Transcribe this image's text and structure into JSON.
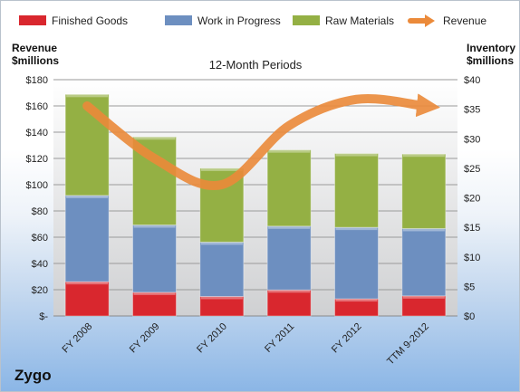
{
  "company": "Zygo",
  "chart_data": {
    "type": "bar",
    "subtype": "stacked bar with line overlay (secondary axis)",
    "title": "12-Month Periods",
    "left_axis_label": [
      "Revenue",
      "$millions"
    ],
    "right_axis_label": [
      "Inventory",
      "$millions"
    ],
    "categories": [
      "FY 2008",
      "FY 2009",
      "FY 2010",
      "FY 2011",
      "FY 2012",
      "TTM 9-2012"
    ],
    "left_ticks": [
      "$-",
      "$20",
      "$40",
      "$60",
      "$80",
      "$100",
      "$120",
      "$140",
      "$160",
      "$180"
    ],
    "right_ticks": [
      "$0",
      "$5",
      "$10",
      "$15",
      "$20",
      "$25",
      "$30",
      "$35",
      "$40"
    ],
    "ylim_left": [
      0,
      180
    ],
    "ylim_right": [
      0,
      40
    ],
    "legend_position": "top",
    "grid": true,
    "series": [
      {
        "name": "Finished Goods",
        "axis": "right",
        "color": "#d9272e",
        "values": [
          5.8,
          4.0,
          3.3,
          4.4,
          2.9,
          3.4
        ]
      },
      {
        "name": "Work in Progress",
        "axis": "right",
        "color": "#6d8fc0",
        "values": [
          14.6,
          11.4,
          9.2,
          10.8,
          12.1,
          11.4
        ]
      },
      {
        "name": "Raw Materials",
        "axis": "right",
        "color": "#94b044",
        "values": [
          17.1,
          14.9,
          12.5,
          12.9,
          12.5,
          12.6
        ]
      },
      {
        "name": "Revenue",
        "axis": "left",
        "type": "line",
        "color": "#eb8a3a",
        "values": [
          160,
          120,
          100,
          145,
          165,
          160
        ]
      }
    ]
  }
}
